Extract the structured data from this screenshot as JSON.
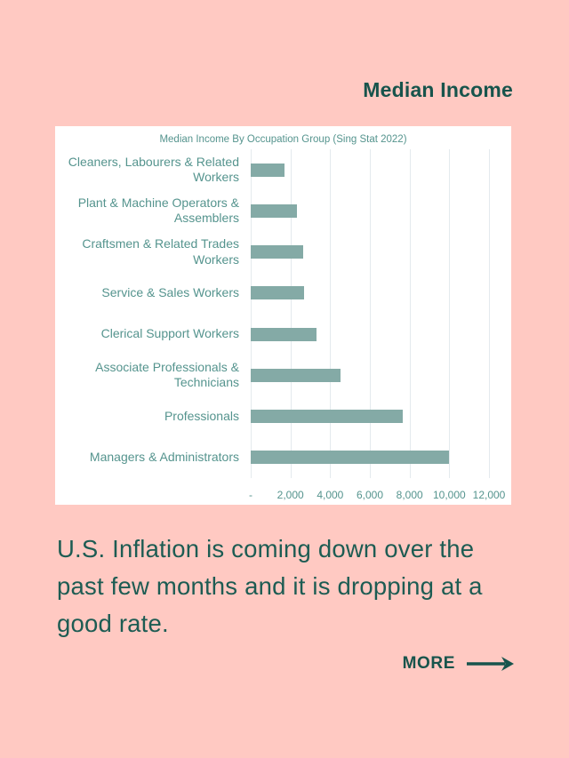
{
  "page": {
    "background_color": "#ffc9c2",
    "header_title": "Median Income",
    "body_text": "U.S. Inflation is coming down over the past few months and it is dropping at a good rate.",
    "more_label": "MORE",
    "accent_dark_teal": "#17544c",
    "body_text_color": "#1d5c53"
  },
  "chart_data": {
    "type": "bar",
    "orientation": "horizontal",
    "title": "Median Income By Occupation Group (Sing Stat 2022)",
    "categories": [
      "Cleaners, Labourers & Related Workers",
      "Plant & Machine Operators & Assemblers",
      "Craftsmen & Related Trades Workers",
      "Service & Sales Workers",
      "Clerical Support Workers",
      "Associate Professionals & Technicians",
      "Professionals",
      "Managers & Administrators"
    ],
    "values": [
      1700,
      2350,
      2650,
      2700,
      3300,
      4500,
      7650,
      10000
    ],
    "xlabel": "",
    "ylabel": "",
    "xlim": [
      0,
      12000
    ],
    "x_ticks": [
      "-",
      "2,000",
      "4,000",
      "6,000",
      "8,000",
      "10,000",
      "12,000"
    ],
    "grid": true,
    "legend": false,
    "bar_color": "#84aaa6",
    "label_color": "#55948e",
    "gridline_color": "#e4eaee"
  }
}
